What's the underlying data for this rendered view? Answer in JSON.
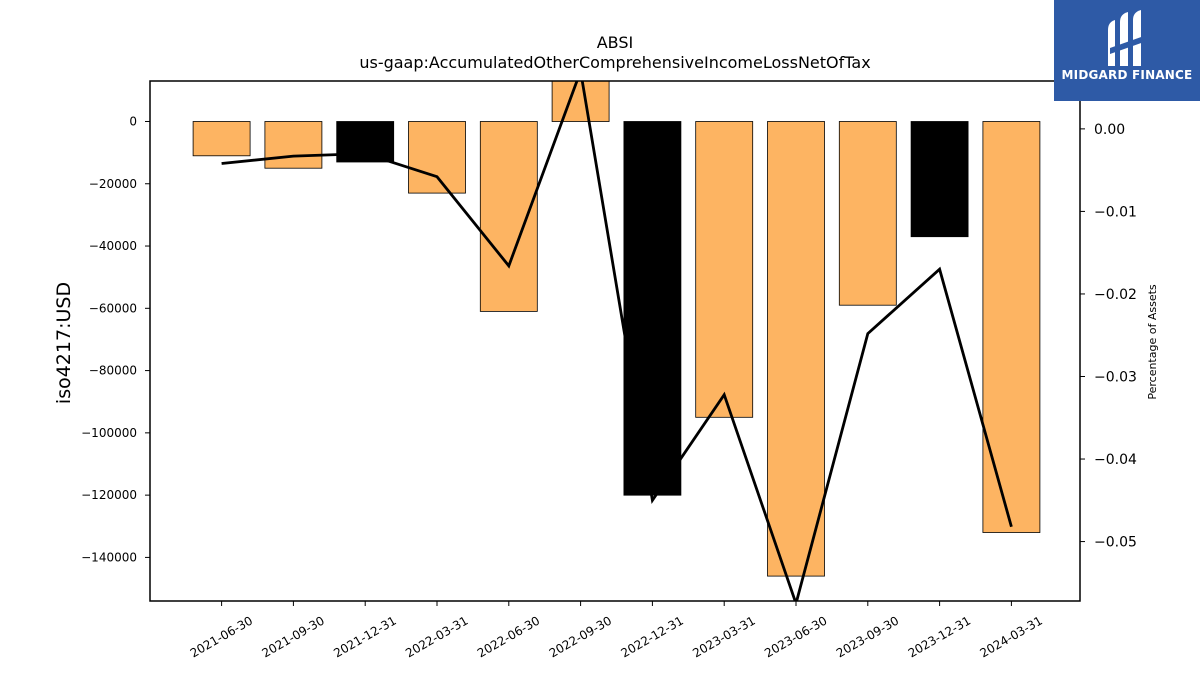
{
  "chart_data": {
    "type": "bar",
    "title": "ABSI",
    "subtitle": "us-gaap:AccumulatedOtherComprehensiveIncomeLossNetOfTax",
    "ylabel": "iso4217:USD",
    "y2label": "Percentage of Assets",
    "categories": [
      "2021-06-30",
      "2021-09-30",
      "2021-12-31",
      "2022-03-31",
      "2022-06-30",
      "2022-09-30",
      "2022-12-31",
      "2023-03-31",
      "2023-06-30",
      "2023-09-30",
      "2023-12-31",
      "2024-03-31"
    ],
    "values": [
      -11000,
      -15000,
      -13000,
      -23000,
      -61000,
      13000,
      -120000,
      -95000,
      -146000,
      -59000,
      -37000,
      -132000
    ],
    "bar_colors": [
      "#fdb462",
      "#fdb462",
      "#000000",
      "#fdb462",
      "#fdb462",
      "#fdb462",
      "#000000",
      "#fdb462",
      "#fdb462",
      "#fdb462",
      "#000000",
      "#fdb462"
    ],
    "line_series": {
      "values": [
        -0.0042,
        -0.0033,
        -0.003,
        -0.0058,
        -0.0166,
        0.007,
        -0.045,
        -0.0322,
        -0.0575,
        -0.0248,
        -0.017,
        -0.0482
      ],
      "color": "#000000"
    },
    "ylim": [
      -154000,
      13000
    ],
    "y2lim": [
      -0.0572,
      0.0058
    ],
    "yticks": [
      0,
      -20000,
      -40000,
      -60000,
      -80000,
      -100000,
      -120000,
      -140000
    ],
    "y2ticks": [
      0.0,
      -0.01,
      -0.02,
      -0.03,
      -0.04,
      -0.05
    ],
    "ytick_labels": [
      "0",
      "−20000",
      "−40000",
      "−60000",
      "−80000",
      "−100000",
      "−120000",
      "−140000"
    ],
    "y2tick_labels": [
      "0.00",
      "−0.01",
      "−0.02",
      "−0.03",
      "−0.04",
      "−0.05"
    ],
    "grid": false,
    "legend": "none"
  },
  "logo": {
    "text": "MIDGARD FINANCE",
    "color": "#2e5aa6"
  }
}
